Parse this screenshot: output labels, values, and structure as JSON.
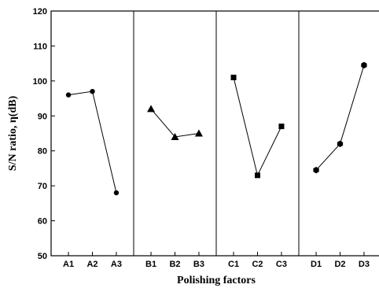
{
  "chart_data": {
    "type": "line",
    "xlabel": "Polishing factors",
    "ylabel": "S/N ratio, η(dB)",
    "ylim": [
      50,
      120
    ],
    "yticks": [
      50,
      60,
      70,
      80,
      90,
      100,
      110,
      120
    ],
    "grid": false,
    "series": [
      {
        "categories": [
          "A1",
          "A2",
          "A3"
        ],
        "values": [
          96,
          97,
          68
        ],
        "marker": "circle"
      },
      {
        "categories": [
          "B1",
          "B2",
          "B3"
        ],
        "values": [
          92,
          84,
          85
        ],
        "marker": "triangle"
      },
      {
        "categories": [
          "C1",
          "C2",
          "C3"
        ],
        "values": [
          101,
          73,
          87
        ],
        "marker": "square"
      },
      {
        "categories": [
          "D1",
          "D2",
          "D3"
        ],
        "values": [
          74.5,
          82,
          104.5
        ],
        "marker": "hexagon"
      }
    ],
    "colors": {
      "line": "#000000",
      "marker": "#000000",
      "frame": "#000000"
    }
  }
}
